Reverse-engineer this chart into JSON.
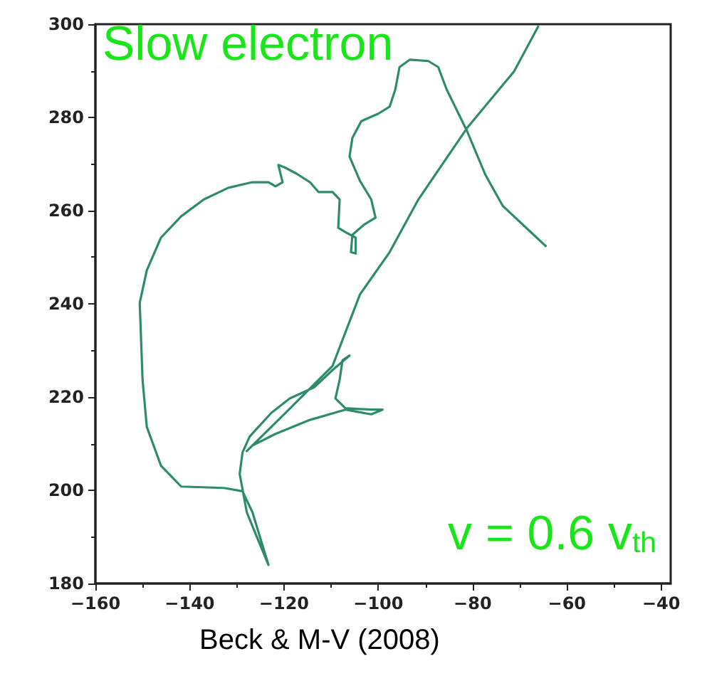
{
  "chart_data": {
    "type": "line",
    "x": [
      -64.5,
      -73.6,
      -77.3,
      -81.2,
      -85.5,
      -87.3,
      -89.4,
      -93.3,
      -95.5,
      -96.4,
      -97.6,
      -100.0,
      -103.6,
      -105.5,
      -106.1,
      -103.9,
      -101.5,
      -100.6,
      -103.0,
      -105.5,
      -105.8,
      -104.8,
      -104.8,
      -107.0,
      -108.5,
      -108.2,
      -109.7,
      -112.7,
      -114.5,
      -117.3,
      -119.7,
      -121.2,
      -120.3,
      -121.8,
      -123.3,
      -126.7,
      -131.8,
      -137.0,
      -141.8,
      -146.1,
      -149.1,
      -150.6,
      -150.0,
      -149.1,
      -146.1,
      -141.8,
      -132.7,
      -128.8,
      -126.7,
      -123.3,
      -125.8,
      -127.9,
      -129.4,
      -128.8,
      -127.3,
      -122.7,
      -118.8,
      -113.6,
      -109.7,
      -106.1,
      -107.6,
      -108.2,
      -109.1,
      -107.0,
      -101.5,
      -99.1,
      -101.5,
      -107.0,
      -114.5,
      -121.8,
      -126.7,
      -127.9,
      -119.7,
      -109.7,
      -103.9,
      -97.6,
      -91.5,
      -81.2,
      -71.2,
      -66.1
    ],
    "series": [
      {
        "color": "#2e8b6e",
        "values": [
          252.4,
          261.0,
          267.7,
          277.1,
          286.0,
          290.8,
          292.1,
          292.4,
          290.8,
          286.0,
          282.3,
          280.8,
          279.2,
          275.6,
          271.6,
          266.4,
          262.4,
          258.5,
          257.0,
          254.8,
          251.1,
          250.8,
          254.2,
          255.4,
          256.3,
          262.4,
          264.0,
          264.0,
          266.1,
          267.9,
          269.2,
          269.8,
          266.1,
          265.2,
          266.1,
          266.1,
          264.9,
          262.4,
          258.8,
          254.2,
          247.2,
          240.2,
          223.7,
          213.6,
          205.3,
          200.8,
          200.5,
          199.8,
          195.3,
          184.0,
          190.1,
          195.3,
          203.5,
          208.1,
          211.5,
          216.6,
          219.7,
          222.1,
          225.8,
          228.9,
          227.9,
          223.7,
          219.7,
          217.6,
          217.3,
          217.3,
          216.3,
          217.3,
          215.1,
          212.1,
          209.6,
          208.4,
          216.6,
          226.7,
          242.0,
          251.1,
          262.4,
          277.7,
          289.9,
          299.5
        ]
      }
    ],
    "xlim": [
      -160,
      -38
    ],
    "xticks": [
      -160,
      -140,
      -120,
      -100,
      -80,
      -60,
      -40
    ],
    "ylim": [
      180,
      300
    ],
    "yticks": [
      180,
      200,
      220,
      240,
      260,
      280,
      300
    ],
    "grid": false,
    "marker": "none",
    "line_style": "solid",
    "annotations": [
      "Slow electron",
      "v = 0.6 v$_{th}$",
      "Beck & M-V (2008)"
    ]
  }
}
